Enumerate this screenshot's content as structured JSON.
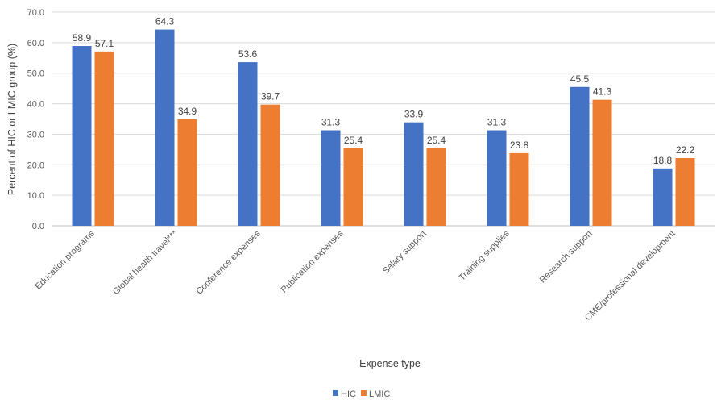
{
  "chart_data": {
    "type": "bar",
    "xlabel": "Expense type",
    "ylabel": "Percent of HIC or LMIC group (%)",
    "ylim": [
      0,
      70
    ],
    "yticks": [
      0,
      10,
      20,
      30,
      40,
      50,
      60,
      70
    ],
    "ytick_labels": [
      "0.0",
      "10.0",
      "20.0",
      "30.0",
      "40.0",
      "50.0",
      "60.0",
      "70.0"
    ],
    "grid": true,
    "legend_position": "bottom",
    "categories": [
      "Education programs",
      "Global health travel***",
      "Conference expenses",
      "Publication expenses",
      "Salary support",
      "Training supplies",
      "Research support",
      "CME/professional development"
    ],
    "series": [
      {
        "name": "HIC",
        "color": "#4472c4",
        "values": [
          58.9,
          64.3,
          53.6,
          31.3,
          33.9,
          31.3,
          45.5,
          18.8
        ],
        "value_labels": [
          "58.9",
          "64.3",
          "53.6",
          "31.3",
          "33.9",
          "31.3",
          "45.5",
          "18.8"
        ]
      },
      {
        "name": "LMIC",
        "color": "#ed7d31",
        "values": [
          57.1,
          34.9,
          39.7,
          25.4,
          25.4,
          23.8,
          41.3,
          22.2
        ],
        "value_labels": [
          "57.1",
          "34.9",
          "39.7",
          "25.4",
          "25.4",
          "23.8",
          "41.3",
          "22.2"
        ]
      }
    ]
  }
}
